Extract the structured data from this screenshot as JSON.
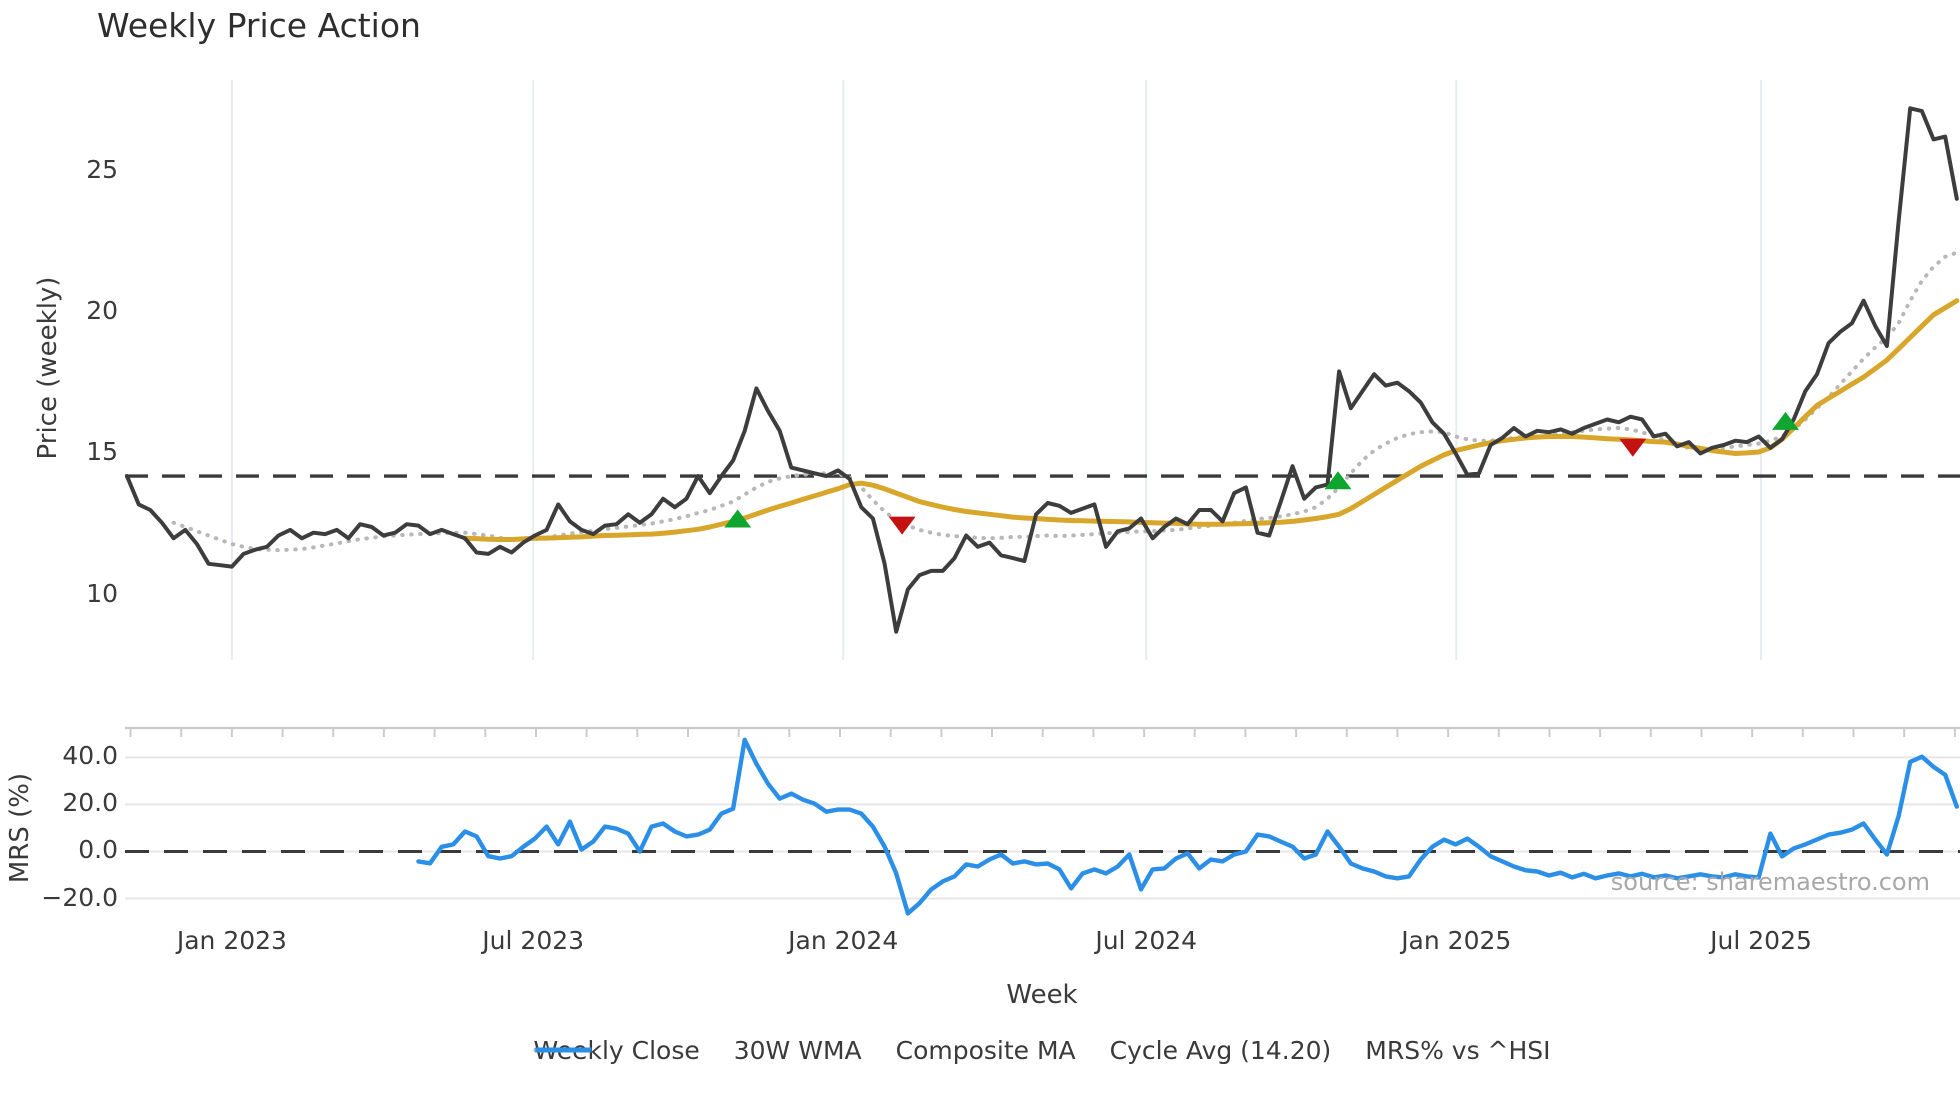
{
  "title": "Weekly Price Action",
  "source_note": "source: sharemaestro.com",
  "colors": {
    "weekly_close": "#3d3d3d",
    "wma_30w": "#d9a62c",
    "composite_ma": "#b8b8b8",
    "cycle_avg": "#3a3a3a",
    "mrs_line": "#2b8fe8",
    "buy_marker": "#10a52f",
    "sell_marker": "#c41212",
    "gridline_vertical": "#e8ebf2",
    "gridline_horizontal": "#e7e7e7",
    "panel_spine": "#c9c9c9",
    "minor_tick": "#cccccc",
    "tick_text": "#3a3a3a"
  },
  "axes": {
    "price": {
      "label": "Price (weekly)",
      "ticks": [
        {
          "v": 25,
          "label": "25"
        },
        {
          "v": 20,
          "label": "20"
        },
        {
          "v": 15,
          "label": "15"
        },
        {
          "v": 10,
          "label": "10"
        }
      ]
    },
    "mrs": {
      "label": "MRS (%)",
      "ticks": [
        {
          "v": 40,
          "label": "40.0"
        },
        {
          "v": 20,
          "label": "20.0"
        },
        {
          "v": 0,
          "label": "0.0"
        },
        {
          "v": -20,
          "label": "−20.0"
        }
      ]
    },
    "x": {
      "label": "Week",
      "ticks": [
        {
          "w": 9.0,
          "label": "Jan 2023"
        },
        {
          "w": 34.85,
          "label": "Jul 2023"
        },
        {
          "w": 61.45,
          "label": "Jan 2024"
        },
        {
          "w": 87.45,
          "label": "Jul 2024"
        },
        {
          "w": 114.05,
          "label": "Jan 2025"
        },
        {
          "w": 140.2,
          "label": "Jul 2025"
        }
      ]
    }
  },
  "legend": [
    {
      "label": "Weekly Close",
      "style": "solid",
      "color": "#3d3d3d"
    },
    {
      "label": "30W WMA",
      "style": "solid",
      "color": "#d9a62c"
    },
    {
      "label": "Composite MA",
      "style": "dotted",
      "color": "#b8b8b8"
    },
    {
      "label": "Cycle Avg (14.20)",
      "style": "dashed",
      "color": "#3a3a3a"
    },
    {
      "label": "MRS% vs ^HSI",
      "style": "solid",
      "color": "#2b8fe8"
    }
  ],
  "chart_data": [
    {
      "type": "line",
      "panel": "price",
      "title": "Weekly Price Action",
      "ylabel": "Price (weekly)",
      "xlabel": "Week",
      "x_unit": "weeks_from_start (week 0 ≈ Nov 2022, ~11.65px/week)",
      "xlim": [
        0,
        157.3
      ],
      "ylim": [
        7.7,
        28.2
      ],
      "yticks": [
        10,
        15,
        20,
        25
      ],
      "grid": "vertical-only",
      "cycle_avg_value": 14.2,
      "series": [
        {
          "name": "Weekly Close",
          "start_week": 0,
          "values": [
            14.2,
            13.2,
            13.0,
            12.55,
            12.0,
            12.3,
            11.8,
            11.1,
            11.05,
            11.0,
            11.45,
            11.6,
            11.7,
            12.1,
            12.3,
            12.0,
            12.2,
            12.15,
            12.3,
            12.0,
            12.5,
            12.4,
            12.1,
            12.2,
            12.5,
            12.45,
            12.15,
            12.3,
            12.15,
            12.0,
            11.5,
            11.45,
            11.7,
            11.5,
            11.85,
            12.1,
            12.3,
            13.2,
            12.6,
            12.3,
            12.15,
            12.45,
            12.5,
            12.85,
            12.55,
            12.85,
            13.4,
            13.1,
            13.4,
            14.2,
            13.6,
            14.2,
            14.75,
            15.8,
            17.3,
            16.5,
            15.8,
            14.5,
            14.4,
            14.3,
            14.2,
            14.4,
            14.1,
            13.1,
            12.7,
            11.1,
            8.7,
            10.2,
            10.7,
            10.85,
            10.85,
            11.3,
            12.1,
            11.7,
            11.85,
            11.4,
            11.3,
            11.2,
            12.85,
            13.25,
            13.15,
            12.9,
            13.05,
            13.2,
            11.7,
            12.25,
            12.35,
            12.7,
            12.0,
            12.4,
            12.7,
            12.5,
            13.0,
            13.0,
            12.6,
            13.6,
            13.8,
            12.2,
            12.1,
            13.3,
            14.55,
            13.4,
            13.8,
            13.9,
            17.9,
            16.6,
            17.2,
            17.8,
            17.4,
            17.5,
            17.2,
            16.8,
            16.1,
            15.7,
            15.0,
            14.25,
            14.3,
            15.3,
            15.55,
            15.9,
            15.6,
            15.8,
            15.75,
            15.85,
            15.7,
            15.9,
            16.05,
            16.2,
            16.1,
            16.3,
            16.2,
            15.6,
            15.7,
            15.25,
            15.4,
            15.0,
            15.2,
            15.3,
            15.45,
            15.4,
            15.6,
            15.2,
            15.5,
            16.2,
            17.2,
            17.8,
            18.9,
            19.3,
            19.6,
            20.4,
            19.5,
            18.8,
            23.2,
            27.2,
            27.1,
            26.1,
            26.2,
            24.0
          ]
        },
        {
          "name": "30W WMA",
          "start_week": 29,
          "values": [
            12.0,
            11.99,
            11.97,
            11.96,
            11.96,
            11.98,
            12.0,
            12.01,
            12.02,
            12.04,
            12.05,
            12.08,
            12.1,
            12.11,
            12.12,
            12.14,
            12.15,
            12.18,
            12.22,
            12.27,
            12.32,
            12.4,
            12.5,
            12.6,
            12.72,
            12.86,
            13.0,
            13.13,
            13.25,
            13.38,
            13.5,
            13.63,
            13.75,
            13.9,
            13.95,
            13.88,
            13.75,
            13.6,
            13.45,
            13.3,
            13.2,
            13.1,
            13.02,
            12.95,
            12.9,
            12.85,
            12.8,
            12.75,
            12.72,
            12.7,
            12.67,
            12.65,
            12.63,
            12.62,
            12.61,
            12.6,
            12.59,
            12.58,
            12.56,
            12.55,
            12.54,
            12.53,
            12.51,
            12.5,
            12.5,
            12.5,
            12.51,
            12.52,
            12.53,
            12.55,
            12.57,
            12.6,
            12.65,
            12.7,
            12.77,
            12.85,
            13.05,
            13.3,
            13.55,
            13.8,
            14.05,
            14.3,
            14.55,
            14.75,
            14.95,
            15.1,
            15.2,
            15.3,
            15.38,
            15.45,
            15.5,
            15.55,
            15.58,
            15.6,
            15.6,
            15.6,
            15.58,
            15.55,
            15.52,
            15.5,
            15.48,
            15.45,
            15.42,
            15.4,
            15.33,
            15.25,
            15.18,
            15.1,
            15.05,
            15.0,
            15.02,
            15.05,
            15.2,
            15.5,
            15.9,
            16.3,
            16.7,
            16.95,
            17.2,
            17.45,
            17.7,
            18.0,
            18.3,
            18.7,
            19.1,
            19.5,
            19.9,
            20.15,
            20.4
          ]
        },
        {
          "name": "Composite MA",
          "start_week": 4,
          "values": [
            12.55,
            12.4,
            12.25,
            12.1,
            11.95,
            11.8,
            11.7,
            11.62,
            11.6,
            11.58,
            11.6,
            11.62,
            11.68,
            11.75,
            11.82,
            11.9,
            11.97,
            12.02,
            12.07,
            12.1,
            12.13,
            12.15,
            12.17,
            12.18,
            12.2,
            12.2,
            12.15,
            12.1,
            12.02,
            11.97,
            11.95,
            11.97,
            12.02,
            12.1,
            12.17,
            12.22,
            12.27,
            12.32,
            12.37,
            12.42,
            12.47,
            12.52,
            12.6,
            12.68,
            12.78,
            12.9,
            13.0,
            13.15,
            13.3,
            13.55,
            13.8,
            14.0,
            14.12,
            14.2,
            14.25,
            14.28,
            14.3,
            14.28,
            14.15,
            13.8,
            13.35,
            12.95,
            12.65,
            12.45,
            12.3,
            12.2,
            12.12,
            12.08,
            12.05,
            12.02,
            12.0,
            12.02,
            12.05,
            12.05,
            12.08,
            12.1,
            12.08,
            12.1,
            12.12,
            12.15,
            12.18,
            12.2,
            12.22,
            12.25,
            12.25,
            12.28,
            12.3,
            12.35,
            12.4,
            12.45,
            12.5,
            12.55,
            12.62,
            12.68,
            12.72,
            12.78,
            12.85,
            12.95,
            13.1,
            13.4,
            13.8,
            14.3,
            14.75,
            15.1,
            15.35,
            15.55,
            15.68,
            15.75,
            15.78,
            15.75,
            15.6,
            15.5,
            15.45,
            15.45,
            15.5,
            15.55,
            15.6,
            15.6,
            15.65,
            15.7,
            15.75,
            15.8,
            15.85,
            15.88,
            15.9,
            15.85,
            15.75,
            15.6,
            15.45,
            15.3,
            15.2,
            15.15,
            15.15,
            15.2,
            15.25,
            15.3,
            15.35,
            15.45,
            15.6,
            15.85,
            16.2,
            16.6,
            17.0,
            17.45,
            17.9,
            18.35,
            18.75,
            19.1,
            19.6,
            20.4,
            21.1,
            21.6,
            21.95,
            22.1
          ]
        },
        {
          "name": "Cycle Avg (14.20)",
          "constant": 14.2
        }
      ],
      "markers": {
        "buy": [
          {
            "w": 52.4,
            "price": 12.7
          },
          {
            "w": 103.9,
            "price": 14.05
          },
          {
            "w": 142.3,
            "price": 16.15
          }
        ],
        "sell": [
          {
            "w": 66.5,
            "price": 12.45
          },
          {
            "w": 129.2,
            "price": 15.2
          }
        ]
      }
    },
    {
      "type": "line",
      "panel": "mrs",
      "ylabel": "MRS (%)",
      "xlim": [
        0,
        157.3
      ],
      "ylim": [
        -27,
        52.5
      ],
      "yticks": [
        -20,
        0,
        20,
        40
      ],
      "grid": "horizontal-only",
      "zero_dashed_line": 0,
      "series": [
        {
          "name": "MRS% vs ^HSI",
          "start_week": 25,
          "values": [
            -4.2,
            -5.0,
            2.0,
            3.0,
            8.5,
            6.4,
            -2.0,
            -3.0,
            -2.0,
            2.0,
            5.5,
            10.6,
            3.0,
            12.7,
            0.8,
            4.2,
            10.6,
            9.7,
            7.6,
            0.0,
            10.6,
            11.9,
            8.5,
            6.4,
            7.2,
            9.3,
            16.1,
            18.2,
            47.5,
            37.3,
            28.8,
            22.5,
            24.6,
            22.0,
            20.3,
            16.9,
            17.8,
            17.8,
            16.1,
            10.6,
            2.1,
            -9.3,
            -26.3,
            -22.0,
            -16.1,
            -12.7,
            -10.6,
            -5.5,
            -6.4,
            -3.4,
            -1.3,
            -5.1,
            -4.2,
            -5.5,
            -5.1,
            -7.6,
            -15.7,
            -9.3,
            -7.6,
            -9.3,
            -6.4,
            -1.3,
            -16.1,
            -7.6,
            -7.2,
            -3.0,
            -0.8,
            -7.2,
            -3.4,
            -4.2,
            -1.3,
            0.0,
            7.2,
            6.4,
            4.2,
            2.1,
            -3.0,
            -1.3,
            8.5,
            2.1,
            -5.1,
            -7.2,
            -8.5,
            -10.6,
            -11.4,
            -10.6,
            -3.4,
            2.0,
            5.0,
            3.0,
            5.5,
            2.0,
            -2.0,
            -4.2,
            -6.4,
            -8.0,
            -8.5,
            -10.2,
            -9.0,
            -11.0,
            -9.5,
            -11.4,
            -10.2,
            -9.3,
            -10.6,
            -9.5,
            -11.0,
            -10.2,
            -11.4,
            -10.6,
            -9.7,
            -10.6,
            -11.0,
            -9.7,
            -10.6,
            -11.0,
            7.6,
            -2.1,
            1.3,
            3.0,
            5.1,
            7.2,
            8.0,
            9.3,
            11.9,
            5.1,
            -1.3,
            15.0,
            38.1,
            40.3,
            36.0,
            32.6,
            19.1
          ]
        }
      ]
    }
  ]
}
